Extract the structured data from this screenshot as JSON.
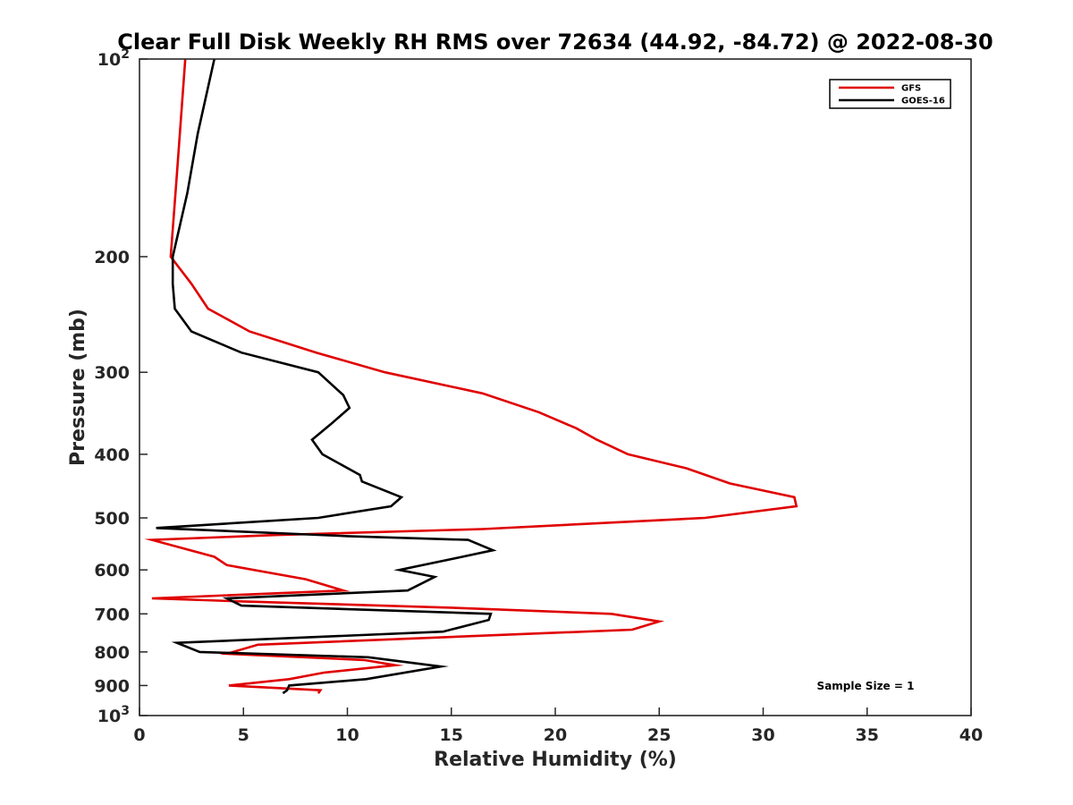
{
  "chart_data": {
    "type": "line",
    "title": "Clear Full Disk Weekly RH RMS over 72634 (44.92, -84.72) @ 2022-08-30",
    "xlabel": "Relative Humidity (%)",
    "ylabel": "Pressure (mb)",
    "xlim": [
      0,
      40
    ],
    "ylim": [
      100,
      1000
    ],
    "yscale": "log",
    "yreversed": true,
    "x_ticks": [
      {
        "value": 0,
        "label": "0"
      },
      {
        "value": 5,
        "label": "5"
      },
      {
        "value": 10,
        "label": "10"
      },
      {
        "value": 15,
        "label": "15"
      },
      {
        "value": 20,
        "label": "20"
      },
      {
        "value": 25,
        "label": "25"
      },
      {
        "value": 30,
        "label": "30"
      },
      {
        "value": 35,
        "label": "35"
      },
      {
        "value": 40,
        "label": "40"
      }
    ],
    "y_ticks": [
      {
        "value": 100,
        "label": "10",
        "sup": "2"
      },
      {
        "value": 200,
        "label": "200",
        "sup": ""
      },
      {
        "value": 300,
        "label": "300",
        "sup": ""
      },
      {
        "value": 400,
        "label": "400",
        "sup": ""
      },
      {
        "value": 500,
        "label": "500",
        "sup": ""
      },
      {
        "value": 600,
        "label": "600",
        "sup": ""
      },
      {
        "value": 700,
        "label": "700",
        "sup": ""
      },
      {
        "value": 800,
        "label": "800",
        "sup": ""
      },
      {
        "value": 900,
        "label": "900",
        "sup": ""
      },
      {
        "value": 1000,
        "label": "10",
        "sup": "3"
      }
    ],
    "grid": false,
    "legend_position": "top-right",
    "annotation": "Sample Size = 1",
    "series": [
      {
        "name": "GFS",
        "color": "#e00000",
        "points": [
          [
            2.2,
            100
          ],
          [
            1.8,
            150
          ],
          [
            1.5,
            200
          ],
          [
            2.5,
            220
          ],
          [
            3.3,
            240
          ],
          [
            5.3,
            260
          ],
          [
            8.5,
            280
          ],
          [
            11.8,
            300
          ],
          [
            16.5,
            323
          ],
          [
            19.2,
            345
          ],
          [
            21.0,
            365
          ],
          [
            22.0,
            380
          ],
          [
            23.5,
            400
          ],
          [
            26.3,
            420
          ],
          [
            28.4,
            443
          ],
          [
            31.5,
            465
          ],
          [
            31.6,
            480
          ],
          [
            27.2,
            500
          ],
          [
            16.5,
            520
          ],
          [
            6.5,
            531
          ],
          [
            0.6,
            540
          ],
          [
            3.6,
            573
          ],
          [
            4.2,
            590
          ],
          [
            8.0,
            620
          ],
          [
            9.8,
            645
          ],
          [
            0.6,
            663
          ],
          [
            4.8,
            670
          ],
          [
            15.0,
            685
          ],
          [
            22.7,
            700
          ],
          [
            25.0,
            719
          ],
          [
            23.7,
            740
          ],
          [
            5.7,
            780
          ],
          [
            4.2,
            805
          ],
          [
            10.8,
            823
          ],
          [
            12.3,
            838
          ],
          [
            8.9,
            860
          ],
          [
            7.2,
            880
          ],
          [
            4.3,
            900
          ],
          [
            8.7,
            915
          ],
          [
            8.6,
            925
          ]
        ]
      },
      {
        "name": "GOES-16",
        "color": "#000000",
        "points": [
          [
            3.6,
            100
          ],
          [
            2.8,
            130
          ],
          [
            2.3,
            160
          ],
          [
            1.6,
            200
          ],
          [
            1.6,
            220
          ],
          [
            1.7,
            240
          ],
          [
            2.5,
            260
          ],
          [
            4.9,
            280
          ],
          [
            8.6,
            300
          ],
          [
            9.8,
            325
          ],
          [
            10.1,
            340
          ],
          [
            9.2,
            360
          ],
          [
            8.3,
            380
          ],
          [
            8.8,
            400
          ],
          [
            10.6,
            430
          ],
          [
            10.7,
            440
          ],
          [
            12.6,
            465
          ],
          [
            12.1,
            480
          ],
          [
            8.6,
            500
          ],
          [
            0.8,
            518
          ],
          [
            10.0,
            533
          ],
          [
            15.8,
            540
          ],
          [
            17.0,
            560
          ],
          [
            15.3,
            575
          ],
          [
            12.5,
            600
          ],
          [
            14.2,
            615
          ],
          [
            12.9,
            645
          ],
          [
            4.2,
            663
          ],
          [
            4.9,
            680
          ],
          [
            16.9,
            700
          ],
          [
            16.8,
            715
          ],
          [
            14.6,
            745
          ],
          [
            1.8,
            775
          ],
          [
            2.9,
            800
          ],
          [
            11.0,
            815
          ],
          [
            14.5,
            842
          ],
          [
            10.9,
            880
          ],
          [
            7.2,
            900
          ],
          [
            7.1,
            915
          ],
          [
            6.9,
            925
          ]
        ]
      }
    ]
  }
}
